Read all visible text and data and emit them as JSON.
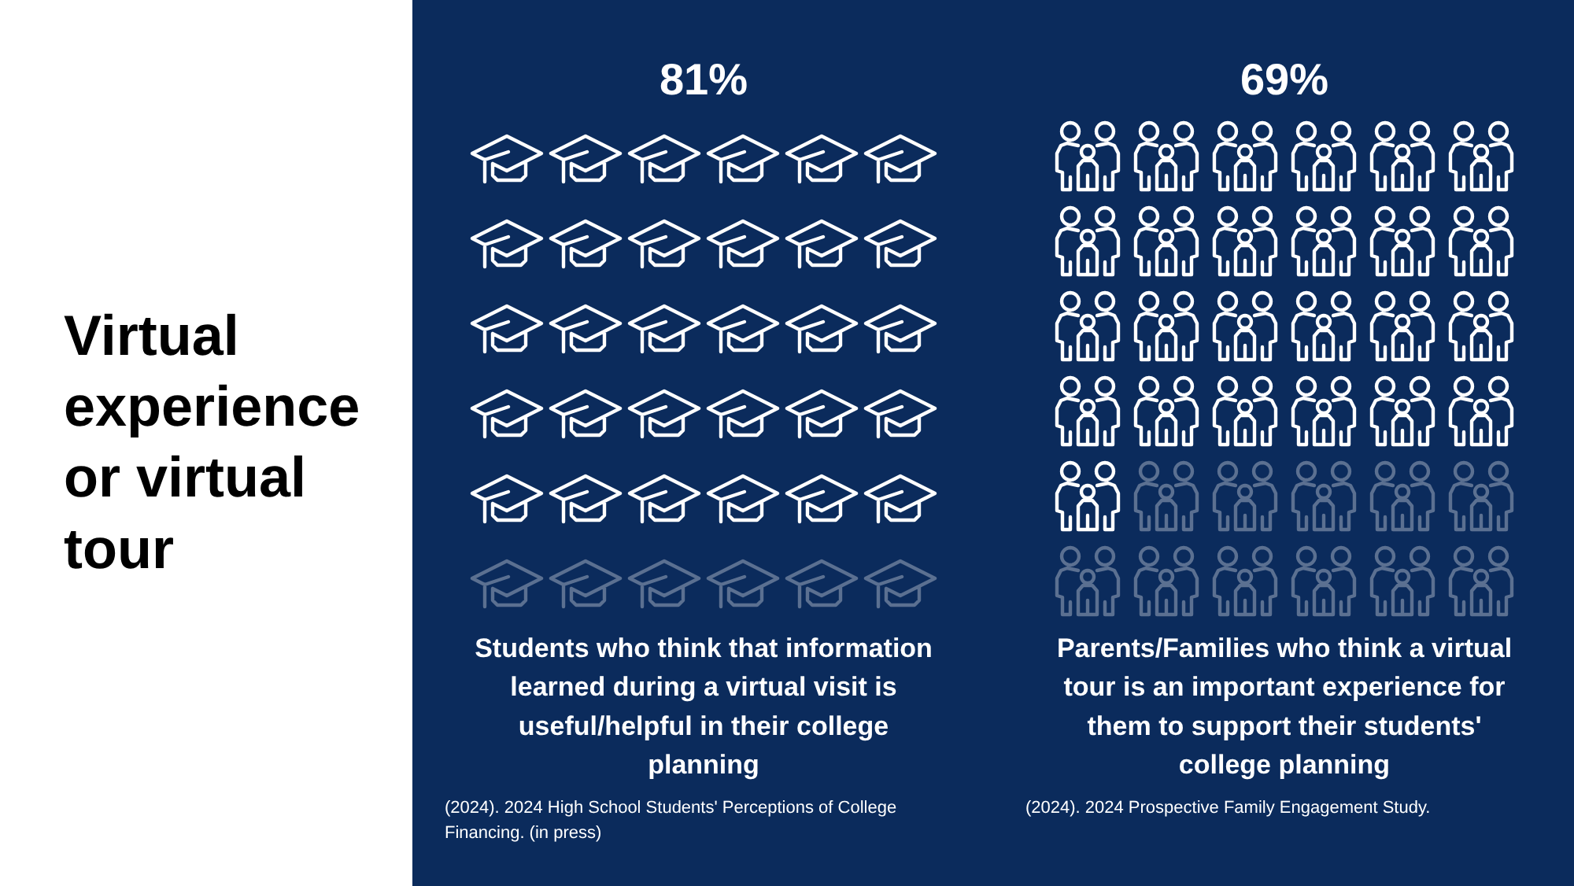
{
  "chart_data": [
    {
      "type": "other",
      "title": "Virtual experience or virtual tour"
    },
    {
      "type": "other",
      "values": [
        81
      ],
      "value_labels": [
        "81%"
      ],
      "color": "#0b2b5c",
      "annotations": [
        "Students who think that information learned during a virtual visit is useful/helpful in their college planning",
        "(2024). 2024 High School Students' Perceptions of College Financing. (in press)"
      ]
    },
    {
      "type": "other",
      "values": [
        69
      ],
      "value_labels": [
        "69%"
      ],
      "color": "#0b2b5c",
      "annotations": [
        "Parents/Families who think a virtual tour is an important experience for them to support their students' college planning",
        "(2024). 2024 Prospective Family Engagement Study."
      ]
    }
  ]
}
